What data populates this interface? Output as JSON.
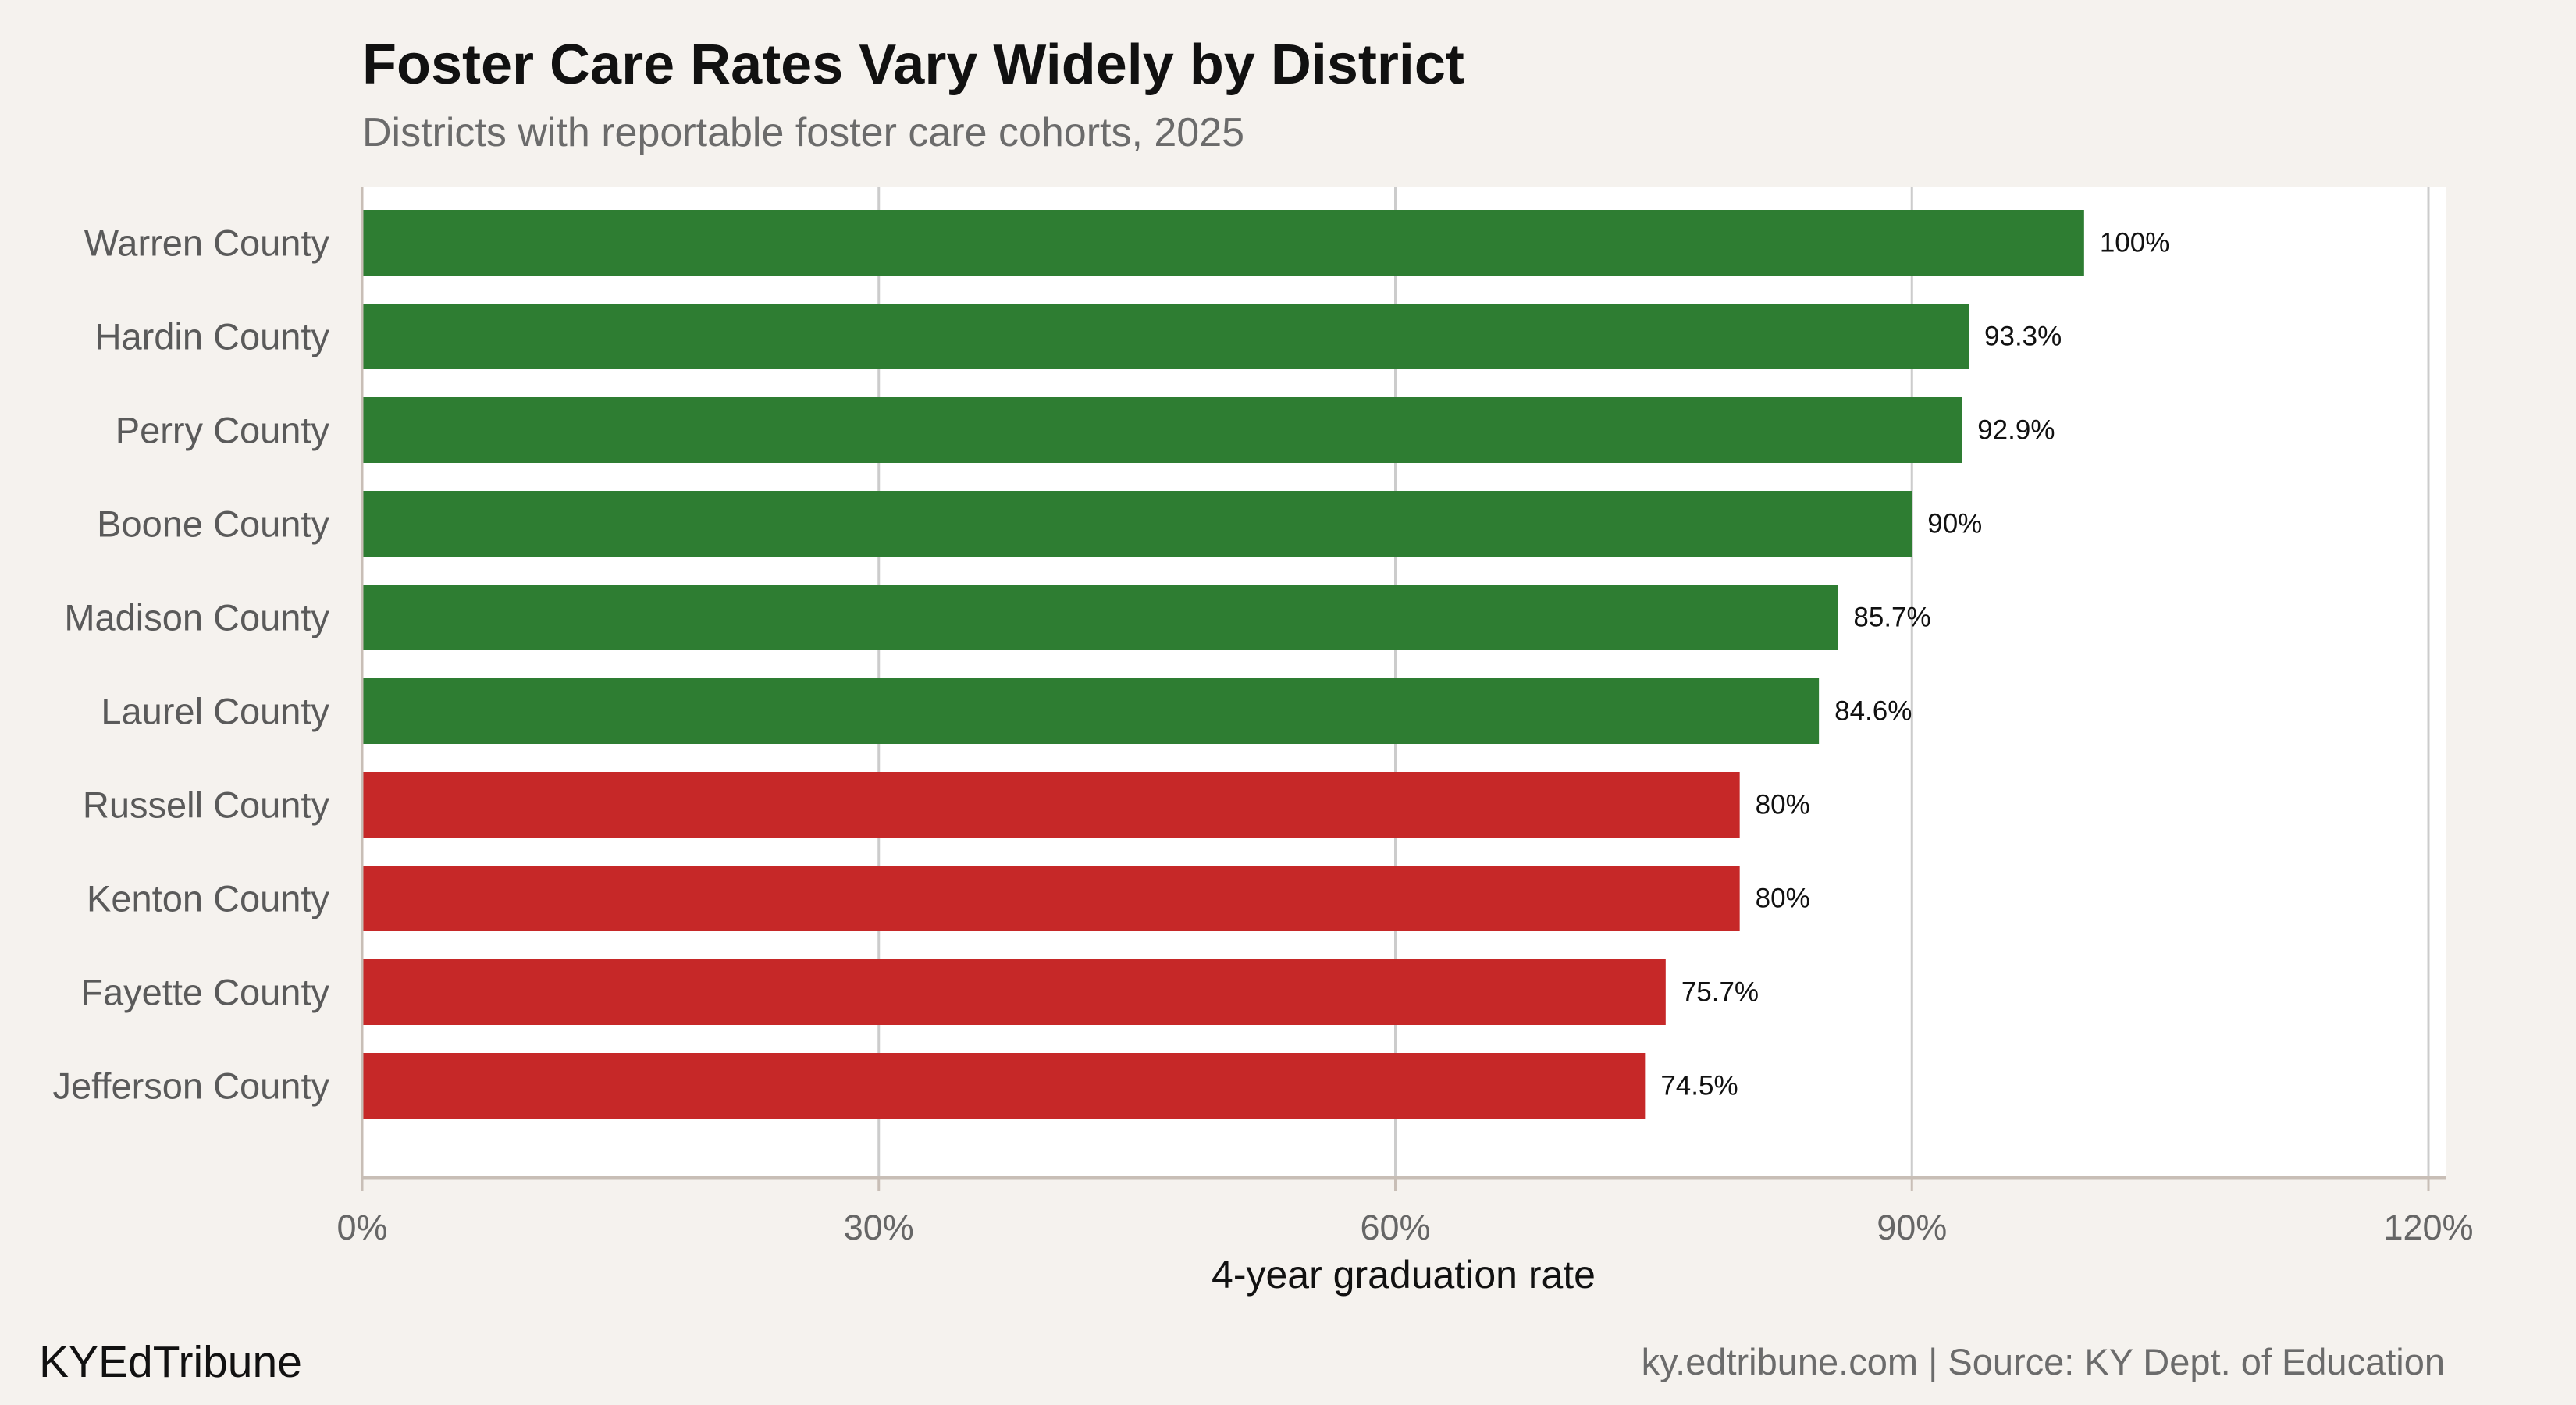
{
  "chart_data": {
    "type": "bar",
    "orientation": "horizontal",
    "title": "Foster Care Rates Vary Widely by District",
    "subtitle": "Districts with reportable foster care cohorts, 2025",
    "xlabel": "4-year graduation rate",
    "ylabel": "",
    "xlim": [
      0,
      120
    ],
    "ticks": [
      0,
      30,
      60,
      90,
      120
    ],
    "tick_labels": [
      "0%",
      "30%",
      "60%",
      "90%",
      "120%"
    ],
    "grid": true,
    "categories": [
      "Warren County",
      "Hardin County",
      "Perry County",
      "Boone County",
      "Madison County",
      "Laurel County",
      "Russell County",
      "Kenton County",
      "Fayette County",
      "Jefferson County"
    ],
    "values": [
      100,
      93.3,
      92.9,
      90,
      85.7,
      84.6,
      80,
      80,
      75.7,
      74.5
    ],
    "value_labels": [
      "100%",
      "93.3%",
      "92.9%",
      "90%",
      "85.7%",
      "84.6%",
      "80%",
      "80%",
      "75.7%",
      "74.5%"
    ],
    "bar_colors": [
      "#2e7d32",
      "#2e7d32",
      "#2e7d32",
      "#2e7d32",
      "#2e7d32",
      "#2e7d32",
      "#c62828",
      "#c62828",
      "#c62828",
      "#c62828"
    ]
  },
  "footer": {
    "brand": "KYEdTribune",
    "source": "ky.edtribune.com | Source: KY Dept. of Education"
  },
  "colors": {
    "background": "#f5f2ee",
    "panel": "#ffffff",
    "gridline": "#cccccc",
    "axis_line": "#c8beb6",
    "high_bar": "#2e7d32",
    "low_bar": "#c62828"
  }
}
